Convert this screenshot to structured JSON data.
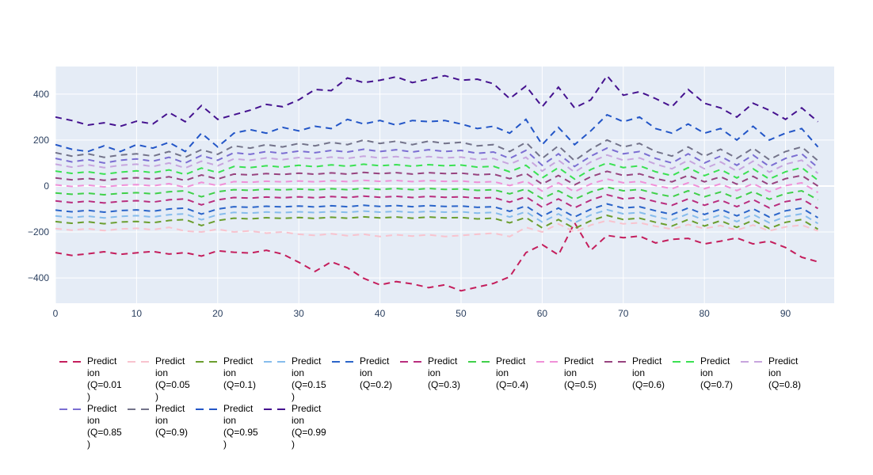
{
  "figure": {
    "background_color": "#ffffff",
    "plot_bgcolor": "#E5ECF6",
    "grid_color": "#ffffff",
    "tick_label_color": "#2a3f5f",
    "legend_text_color": "#000000",
    "line_dash": "dashed"
  },
  "chart_data": {
    "type": "line",
    "title": "",
    "xlabel": "",
    "ylabel": "",
    "xlim": [
      0,
      96
    ],
    "ylim": [
      -510,
      520
    ],
    "x_ticks": [
      0,
      10,
      20,
      30,
      40,
      50,
      60,
      70,
      80,
      90
    ],
    "y_ticks": [
      -400,
      -200,
      0,
      200,
      400
    ],
    "grid": true,
    "legend_position": "bottom",
    "x": [
      0,
      2,
      4,
      6,
      8,
      10,
      12,
      14,
      16,
      18,
      20,
      22,
      24,
      26,
      28,
      30,
      32,
      34,
      36,
      38,
      40,
      42,
      44,
      46,
      48,
      50,
      52,
      54,
      56,
      58,
      60,
      62,
      64,
      66,
      68,
      70,
      72,
      74,
      76,
      78,
      80,
      82,
      84,
      86,
      88,
      90,
      92,
      94
    ],
    "series": [
      {
        "name": "Prediction (Q=0.01)",
        "label_lines": [
          "Predict",
          "ion",
          "(Q=0.01",
          ")"
        ],
        "color": "#C41E5C",
        "values": [
          -290,
          -302,
          -295,
          -286,
          -297,
          -291,
          -285,
          -296,
          -290,
          -305,
          -282,
          -288,
          -292,
          -280,
          -296,
          -332,
          -372,
          -330,
          -356,
          -402,
          -430,
          -416,
          -426,
          -442,
          -430,
          -456,
          -440,
          -424,
          -395,
          -290,
          -255,
          -300,
          -160,
          -280,
          -215,
          -225,
          -218,
          -248,
          -232,
          -228,
          -252,
          -240,
          -226,
          -252,
          -240,
          -268,
          -310,
          -330
        ]
      },
      {
        "name": "Prediction (Q=0.05)",
        "label_lines": [
          "Predict",
          "ion",
          "(Q=0.05",
          ")"
        ],
        "color": "#F8C3CE",
        "values": [
          -185,
          -192,
          -186,
          -194,
          -187,
          -184,
          -190,
          -180,
          -196,
          -200,
          -188,
          -200,
          -195,
          -205,
          -200,
          -210,
          -215,
          -208,
          -216,
          -210,
          -220,
          -212,
          -218,
          -212,
          -220,
          -215,
          -210,
          -205,
          -220,
          -180,
          -200,
          -165,
          -200,
          -170,
          -150,
          -165,
          -160,
          -175,
          -188,
          -168,
          -185,
          -172,
          -192,
          -170,
          -195,
          -178,
          -170,
          -195
        ]
      },
      {
        "name": "Prediction (Q=0.1)",
        "label_lines": [
          "Predict",
          "ion",
          "(Q=0.1)"
        ],
        "color": "#6B9E2E",
        "values": [
          -155,
          -162,
          -156,
          -164,
          -157,
          -154,
          -160,
          -150,
          -146,
          -172,
          -150,
          -140,
          -143,
          -138,
          -141,
          -137,
          -141,
          -136,
          -140,
          -134,
          -139,
          -135,
          -140,
          -135,
          -139,
          -137,
          -143,
          -140,
          -160,
          -137,
          -182,
          -146,
          -185,
          -151,
          -128,
          -146,
          -140,
          -158,
          -174,
          -146,
          -174,
          -151,
          -180,
          -149,
          -185,
          -158,
          -146,
          -188
        ]
      },
      {
        "name": "Prediction (Q=0.15)",
        "label_lines": [
          "Predict",
          "ion",
          "(Q=0.15",
          ")"
        ],
        "color": "#86BCEC",
        "values": [
          -130,
          -137,
          -131,
          -139,
          -132,
          -129,
          -135,
          -125,
          -121,
          -147,
          -125,
          -115,
          -118,
          -113,
          -116,
          -112,
          -116,
          -111,
          -115,
          -109,
          -114,
          -110,
          -115,
          -110,
          -114,
          -112,
          -118,
          -115,
          -135,
          -112,
          -157,
          -121,
          -160,
          -126,
          -103,
          -121,
          -115,
          -133,
          -149,
          -121,
          -149,
          -126,
          -155,
          -124,
          -160,
          -133,
          -121,
          -163
        ]
      },
      {
        "name": "Prediction (Q=0.2)",
        "label_lines": [
          "Predict",
          "ion",
          "(Q=0.2)"
        ],
        "color": "#2B65C9",
        "values": [
          -105,
          -112,
          -106,
          -114,
          -107,
          -104,
          -110,
          -100,
          -96,
          -122,
          -100,
          -90,
          -93,
          -88,
          -91,
          -87,
          -91,
          -86,
          -90,
          -84,
          -89,
          -85,
          -90,
          -85,
          -89,
          -87,
          -93,
          -90,
          -110,
          -87,
          -132,
          -96,
          -135,
          -101,
          -78,
          -96,
          -90,
          -108,
          -124,
          -96,
          -124,
          -101,
          -130,
          -99,
          -135,
          -108,
          -96,
          -138
        ]
      },
      {
        "name": "Prediction (Q=0.3)",
        "label_lines": [
          "Predict",
          "ion",
          "(Q=0.3)"
        ],
        "color": "#B92D7E",
        "values": [
          -65,
          -72,
          -66,
          -74,
          -67,
          -64,
          -70,
          -60,
          -56,
          -82,
          -60,
          -50,
          -53,
          -48,
          -51,
          -47,
          -51,
          -46,
          -50,
          -44,
          -49,
          -45,
          -50,
          -45,
          -49,
          -47,
          -53,
          -50,
          -70,
          -47,
          -92,
          -56,
          -95,
          -61,
          -38,
          -56,
          -50,
          -68,
          -84,
          -56,
          -84,
          -61,
          -90,
          -59,
          -95,
          -68,
          -56,
          -98
        ]
      },
      {
        "name": "Prediction (Q=0.4)",
        "label_lines": [
          "Predict",
          "ion",
          "(Q=0.4)"
        ],
        "color": "#40D04A",
        "values": [
          -30,
          -36,
          -31,
          -38,
          -32,
          -29,
          -34,
          -25,
          -21,
          -47,
          -25,
          -16,
          -19,
          -14,
          -17,
          -13,
          -17,
          -12,
          -16,
          -10,
          -15,
          -11,
          -16,
          -11,
          -15,
          -13,
          -19,
          -16,
          -34,
          -13,
          -55,
          -21,
          -58,
          -26,
          -5,
          -21,
          -15,
          -33,
          -47,
          -21,
          -47,
          -26,
          -54,
          -24,
          -58,
          -33,
          -21,
          -60
        ]
      },
      {
        "name": "Prediction (Q=0.5)",
        "label_lines": [
          "Predict",
          "ion",
          "(Q=0.5)"
        ],
        "color": "#F090D8",
        "values": [
          5,
          -2,
          4,
          -4,
          3,
          6,
          1,
          10,
          -6,
          16,
          2,
          19,
          16,
          21,
          18,
          22,
          18,
          23,
          19,
          25,
          20,
          24,
          19,
          24,
          20,
          22,
          16,
          19,
          2,
          22,
          -22,
          14,
          -25,
          9,
          30,
          14,
          20,
          2,
          -12,
          14,
          -12,
          9,
          -20,
          11,
          -25,
          2,
          14,
          -28
        ]
      },
      {
        "name": "Prediction (Q=0.6)",
        "label_lines": [
          "Predict",
          "ion",
          "(Q=0.6)"
        ],
        "color": "#97437F",
        "values": [
          35,
          27,
          33,
          25,
          32,
          36,
          30,
          40,
          24,
          48,
          30,
          52,
          48,
          54,
          50,
          56,
          51,
          57,
          52,
          59,
          54,
          58,
          52,
          58,
          54,
          56,
          49,
          52,
          32,
          55,
          8,
          46,
          5,
          40,
          64,
          46,
          53,
          32,
          18,
          46,
          18,
          40,
          8,
          42,
          5,
          32,
          46,
          0
        ]
      },
      {
        "name": "Prediction (Q=0.7)",
        "label_lines": [
          "Predict",
          "ion",
          "(Q=0.7)"
        ],
        "color": "#3BE153",
        "values": [
          65,
          55,
          62,
          52,
          60,
          66,
          58,
          70,
          50,
          78,
          58,
          85,
          80,
          88,
          82,
          90,
          84,
          92,
          86,
          95,
          88,
          93,
          86,
          93,
          88,
          91,
          82,
          86,
          62,
          90,
          35,
          80,
          30,
          72,
          100,
          80,
          88,
          62,
          45,
          80,
          45,
          72,
          35,
          75,
          30,
          62,
          80,
          25
        ]
      },
      {
        "name": "Prediction (Q=0.8)",
        "label_lines": [
          "Predict",
          "ion",
          "(Q=0.8)"
        ],
        "color": "#C7A5DE",
        "values": [
          95,
          82,
          92,
          80,
          90,
          95,
          85,
          100,
          78,
          108,
          88,
          118,
          112,
          122,
          115,
          124,
          118,
          126,
          120,
          130,
          122,
          128,
          120,
          128,
          122,
          126,
          115,
          120,
          95,
          125,
          65,
          112,
          60,
          105,
          135,
          112,
          122,
          95,
          75,
          112,
          75,
          105,
          65,
          108,
          60,
          95,
          112,
          55
        ]
      },
      {
        "name": "Prediction (Q=0.85)",
        "label_lines": [
          "Predict",
          "ion",
          "(Q=0.85",
          ")"
        ],
        "color": "#7B6ED2",
        "values": [
          120,
          105,
          115,
          100,
          112,
          118,
          108,
          125,
          100,
          133,
          112,
          145,
          138,
          150,
          142,
          152,
          145,
          155,
          148,
          160,
          150,
          158,
          148,
          158,
          150,
          155,
          142,
          148,
          120,
          155,
          90,
          140,
          85,
          130,
          165,
          140,
          150,
          120,
          100,
          140,
          100,
          130,
          90,
          135,
          85,
          120,
          140,
          80
        ]
      },
      {
        "name": "Prediction (Q=0.9)",
        "label_lines": [
          "Predict",
          "ion",
          "(Q=0.9)"
        ],
        "color": "#73738A",
        "values": [
          145,
          130,
          140,
          125,
          135,
          140,
          130,
          150,
          125,
          158,
          138,
          175,
          165,
          180,
          170,
          185,
          175,
          190,
          180,
          200,
          185,
          195,
          180,
          195,
          185,
          190,
          175,
          180,
          150,
          190,
          120,
          175,
          110,
          160,
          200,
          170,
          185,
          150,
          130,
          170,
          130,
          160,
          120,
          165,
          115,
          150,
          170,
          110
        ]
      },
      {
        "name": "Prediction (Q=0.95)",
        "label_lines": [
          "Predict",
          "ion",
          "(Q=0.95",
          ")"
        ],
        "color": "#2356C7",
        "values": [
          180,
          160,
          150,
          175,
          150,
          180,
          165,
          190,
          150,
          230,
          170,
          230,
          245,
          230,
          255,
          240,
          260,
          250,
          290,
          270,
          285,
          265,
          285,
          280,
          285,
          270,
          250,
          260,
          230,
          290,
          180,
          255,
          180,
          240,
          310,
          280,
          300,
          250,
          230,
          270,
          230,
          250,
          200,
          260,
          200,
          230,
          250,
          170
        ]
      },
      {
        "name": "Prediction (Q=0.99)",
        "label_lines": [
          "Predict",
          "ion",
          "(Q=0.99",
          ")"
        ],
        "color": "#45128F",
        "values": [
          300,
          285,
          265,
          275,
          260,
          282,
          270,
          320,
          280,
          350,
          290,
          310,
          330,
          355,
          345,
          375,
          420,
          415,
          470,
          450,
          460,
          475,
          450,
          465,
          480,
          460,
          465,
          445,
          380,
          435,
          345,
          430,
          340,
          375,
          480,
          395,
          410,
          380,
          345,
          420,
          360,
          340,
          300,
          360,
          330,
          290,
          340,
          280
        ]
      }
    ]
  }
}
